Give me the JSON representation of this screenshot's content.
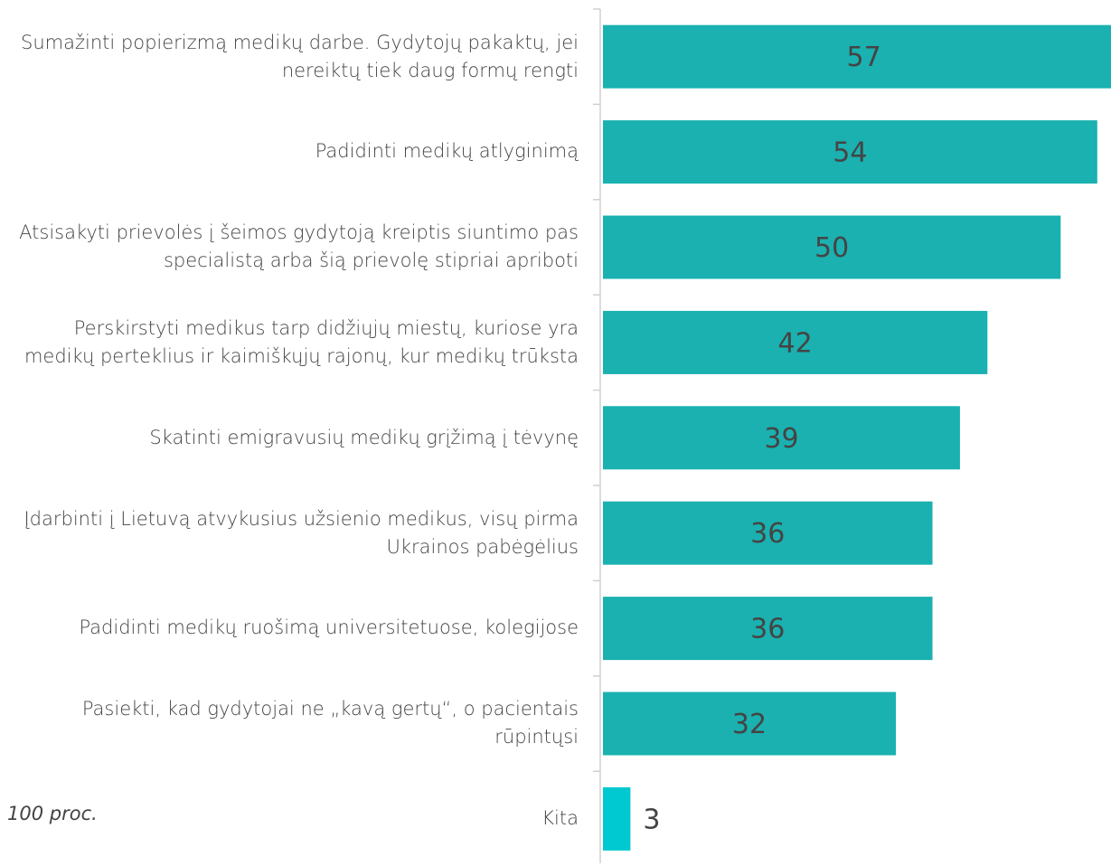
{
  "chart_data": {
    "type": "barh",
    "categories": [
      "Sumažinti popierizmą medikų darbe. Gydytojų pakaktų, jei nereiktų tiek daug formų rengti",
      "Padidinti medikų atlyginimą",
      "Atsisakyti prievolės į šeimos gydytoją kreiptis siuntimo pas specialistą arba šią prievolę stipriai apriboti",
      "Perskirstyti medikus tarp didžiųjų miestų, kuriose yra medikų perteklius ir kaimiškųjų rajonų, kur medikų trūksta",
      "Skatinti emigravusių medikų grįžimą į tėvynę",
      "Įdarbinti į Lietuvą atvykusius užsienio medikus, visų pirma Ukrainos pabėgėlius",
      "Padidinti medikų ruošimą universitetuose, kolegijose",
      "Pasiekti, kad gydytojai ne „kavą gertų“, o pacientais rūpintųsi",
      "Kita"
    ],
    "values": [
      57,
      54,
      50,
      42,
      39,
      36,
      36,
      32,
      3
    ],
    "colors": [
      "#1ab1b0",
      "#1ab1b0",
      "#1ab1b0",
      "#1ab1b0",
      "#1ab1b0",
      "#1ab1b0",
      "#1ab1b0",
      "#1ab1b0",
      "#00c9d2"
    ],
    "xlim": [
      0,
      55.5
    ],
    "note": "100 proc."
  }
}
